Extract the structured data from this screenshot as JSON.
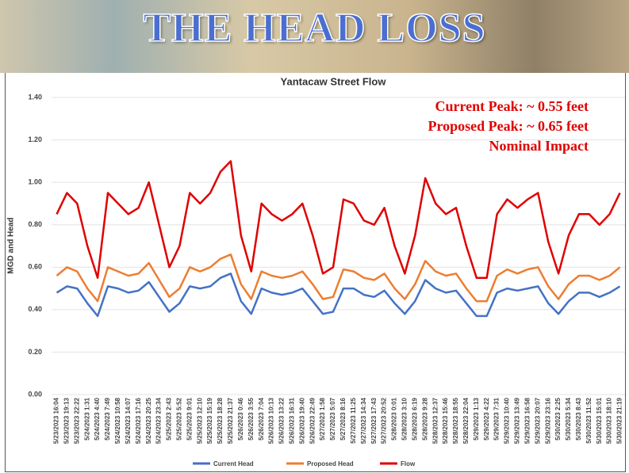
{
  "header": {
    "title": "THE HEAD LOSS"
  },
  "chart_data": {
    "type": "line",
    "title": "Yantacaw Street Flow",
    "y_label": "MGD and Head",
    "annotations": [
      "Current Peak: ~ 0.55 feet",
      "Proposed Peak: ~ 0.65 feet",
      "Nominal Impact"
    ],
    "categories": [
      "5/23/2023 16:04",
      "5/23/2023 19:13",
      "5/23/2023 22:22",
      "5/24/2023 1:31",
      "5/24/2023 4:40",
      "5/24/2023 7:49",
      "5/24/2023 10:58",
      "5/24/2023 14:07",
      "5/24/2023 17:16",
      "5/24/2023 20:25",
      "5/24/2023 23:34",
      "5/25/2023 2:43",
      "5/25/2023 5:52",
      "5/25/2023 9:01",
      "5/25/2023 12:10",
      "5/25/2023 15:19",
      "5/25/2023 18:28",
      "5/25/2023 21:37",
      "5/26/2023 0:46",
      "5/26/2023 3:55",
      "5/26/2023 7:04",
      "5/26/2023 10:13",
      "5/26/2023 13:22",
      "5/26/2023 16:31",
      "5/26/2023 19:40",
      "5/26/2023 22:49",
      "5/27/2023 1:58",
      "5/27/2023 5:07",
      "5/27/2023 8:16",
      "5/27/2023 11:25",
      "5/27/2023 14:34",
      "5/27/2023 17:43",
      "5/27/2023 20:52",
      "5/28/2023 0:01",
      "5/28/2023 3:10",
      "5/28/2023 6:19",
      "5/28/2023 9:28",
      "5/28/2023 12:37",
      "5/28/2023 15:46",
      "5/28/2023 18:55",
      "5/28/2023 22:04",
      "5/29/2023 1:13",
      "5/29/2023 4:22",
      "5/29/2023 7:31",
      "5/29/2023 10:40",
      "5/29/2023 13:49",
      "5/29/2023 16:58",
      "5/29/2023 20:07",
      "5/29/2023 23:16",
      "5/30/2023 2:25",
      "5/30/2023 5:34",
      "5/30/2023 8:43",
      "5/30/2023 11:52",
      "5/30/2023 15:01",
      "5/30/2023 18:10",
      "5/30/2023 21:19"
    ],
    "series": [
      {
        "name": "Current Head",
        "color": "#4472c4",
        "values": [
          0.48,
          0.51,
          0.5,
          0.43,
          0.37,
          0.51,
          0.5,
          0.48,
          0.49,
          0.53,
          0.46,
          0.39,
          0.43,
          0.51,
          0.5,
          0.51,
          0.55,
          0.57,
          0.44,
          0.38,
          0.5,
          0.48,
          0.47,
          0.48,
          0.5,
          0.44,
          0.38,
          0.39,
          0.5,
          0.5,
          0.47,
          0.46,
          0.49,
          0.43,
          0.38,
          0.44,
          0.54,
          0.5,
          0.48,
          0.49,
          0.43,
          0.37,
          0.37,
          0.48,
          0.5,
          0.49,
          0.5,
          0.51,
          0.43,
          0.38,
          0.44,
          0.48,
          0.48,
          0.46,
          0.48,
          0.51
        ]
      },
      {
        "name": "Proposed Head",
        "color": "#ed7d31",
        "values": [
          0.56,
          0.6,
          0.58,
          0.5,
          0.44,
          0.6,
          0.58,
          0.56,
          0.57,
          0.62,
          0.54,
          0.46,
          0.5,
          0.6,
          0.58,
          0.6,
          0.64,
          0.66,
          0.52,
          0.45,
          0.58,
          0.56,
          0.55,
          0.56,
          0.58,
          0.52,
          0.45,
          0.46,
          0.59,
          0.58,
          0.55,
          0.54,
          0.57,
          0.5,
          0.45,
          0.52,
          0.63,
          0.58,
          0.56,
          0.57,
          0.5,
          0.44,
          0.44,
          0.56,
          0.59,
          0.57,
          0.59,
          0.6,
          0.51,
          0.45,
          0.52,
          0.56,
          0.56,
          0.54,
          0.56,
          0.6
        ]
      },
      {
        "name": "Flow",
        "color": "#e00000",
        "values": [
          0.85,
          0.95,
          0.9,
          0.7,
          0.55,
          0.95,
          0.9,
          0.85,
          0.88,
          1.0,
          0.8,
          0.6,
          0.7,
          0.95,
          0.9,
          0.95,
          1.05,
          1.1,
          0.75,
          0.58,
          0.9,
          0.85,
          0.82,
          0.85,
          0.9,
          0.75,
          0.57,
          0.6,
          0.92,
          0.9,
          0.82,
          0.8,
          0.88,
          0.7,
          0.57,
          0.75,
          1.02,
          0.9,
          0.85,
          0.88,
          0.7,
          0.55,
          0.55,
          0.85,
          0.92,
          0.88,
          0.92,
          0.95,
          0.72,
          0.57,
          0.75,
          0.85,
          0.85,
          0.8,
          0.85,
          0.95
        ]
      }
    ],
    "ylim": [
      0,
      1.4
    ],
    "yticks": [
      {
        "value": 0,
        "label": "0.00"
      },
      {
        "value": 0.2,
        "label": "0.20"
      },
      {
        "value": 0.4,
        "label": "0.40"
      },
      {
        "value": 0.6,
        "label": "0.60"
      },
      {
        "value": 0.8,
        "label": "0.80"
      },
      {
        "value": 1.0,
        "label": "1.00"
      },
      {
        "value": 1.2,
        "label": "1.20"
      },
      {
        "value": 1.4,
        "label": "1.40"
      }
    ],
    "grid": true
  }
}
